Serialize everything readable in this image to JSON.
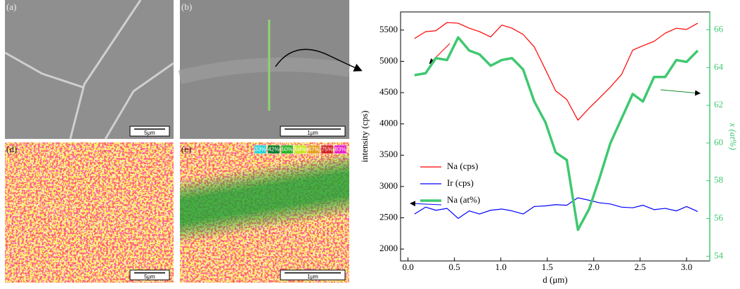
{
  "panels": [
    {
      "label": "(a)",
      "scale_bar": "5μm"
    },
    {
      "label": "(b)",
      "scale_bar": "1μm"
    },
    {
      "label": "(d)",
      "scale_bar": "5μm"
    },
    {
      "label": "(e)",
      "scale_bar": "1μm"
    }
  ],
  "color_key": [
    {
      "label": "33%",
      "color": "#22d3d3"
    },
    {
      "label": "42%",
      "color": "#0a7a2a"
    },
    {
      "label": "50%",
      "color": "#22b422"
    },
    {
      "label": "58%",
      "color": "#c8e61e"
    },
    {
      "label": "67%",
      "color": "#e6a01e"
    },
    {
      "label": "75%",
      "color": "#d21e1e"
    },
    {
      "label": "83%",
      "color": "#e61ec8"
    }
  ],
  "chart_data": {
    "type": "line",
    "xlabel": "d (μm)",
    "ylabel": "intensity (cps)",
    "y2label": "x (at%)",
    "x": [
      0.07,
      0.19,
      0.3,
      0.42,
      0.54,
      0.66,
      0.77,
      0.89,
      1.01,
      1.12,
      1.24,
      1.36,
      1.48,
      1.59,
      1.71,
      1.83,
      1.95,
      2.06,
      2.18,
      2.3,
      2.42,
      2.53,
      2.65,
      2.77,
      2.89,
      3.0,
      3.12
    ],
    "series": [
      {
        "name": "Na (cps)",
        "color": "#ff0000",
        "width": 1.2,
        "values": [
          5365,
          5475,
          5490,
          5620,
          5610,
          5530,
          5475,
          5390,
          5580,
          5530,
          5430,
          5230,
          4870,
          4530,
          4390,
          4060,
          4250,
          4410,
          4590,
          4790,
          5180,
          5250,
          5320,
          5450,
          5530,
          5510,
          5610
        ]
      },
      {
        "name": "Ir (cps)",
        "color": "#0000ff",
        "width": 1.2,
        "values": [
          2560,
          2670,
          2620,
          2650,
          2490,
          2610,
          2560,
          2620,
          2640,
          2610,
          2560,
          2680,
          2690,
          2710,
          2700,
          2820,
          2780,
          2740,
          2720,
          2670,
          2660,
          2700,
          2630,
          2650,
          2610,
          2680,
          2600
        ]
      },
      {
        "name": "Na (at%)",
        "color": "#3fc870",
        "width": 3.5,
        "axis": "y2",
        "values": [
          63.6,
          63.7,
          64.5,
          64.4,
          65.6,
          64.9,
          64.7,
          64.1,
          64.4,
          64.5,
          63.9,
          62.2,
          61.1,
          59.5,
          59.1,
          55.4,
          56.5,
          58.1,
          60.0,
          61.3,
          62.6,
          62.2,
          63.5,
          63.5,
          64.4,
          64.3,
          64.9
        ]
      }
    ],
    "xlim": [
      -0.08,
      3.25
    ],
    "xticks": [
      {
        "value": 0,
        "label": "0.0"
      },
      0.5,
      {
        "value": 1,
        "label": "1.0"
      },
      1.5,
      {
        "value": 2,
        "label": "2.0"
      },
      2.5,
      {
        "value": 3,
        "label": "3.0"
      }
    ],
    "ylim": [
      1810,
      5790
    ],
    "yticks": [
      2000,
      2500,
      3000,
      3500,
      4000,
      4500,
      5000,
      5500
    ],
    "y2lim": [
      53.75,
      66.95
    ],
    "y2ticks": [
      54,
      56,
      58,
      60,
      62,
      64,
      66
    ],
    "y2color": "#3fc870"
  }
}
